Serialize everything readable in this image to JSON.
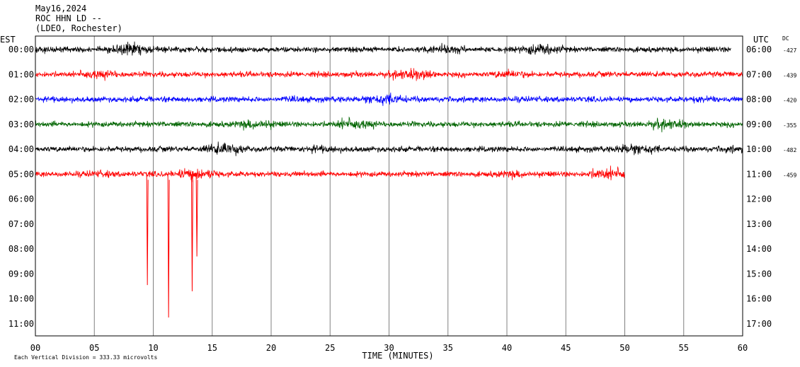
{
  "header": {
    "date": "May16,2024",
    "station": "ROC HHN LD --",
    "network": "(LDEO, Rochester)"
  },
  "chart_data": {
    "type": "line",
    "xlabel": "TIME (MINUTES)",
    "left_axis_label": "EST",
    "right_axis_label": "UTC",
    "dc_label": "DC",
    "xlim": [
      0,
      60
    ],
    "x_ticks": [
      "00",
      "05",
      "10",
      "15",
      "20",
      "25",
      "30",
      "35",
      "40",
      "45",
      "50",
      "55",
      "60"
    ],
    "rows_est": [
      "00:00",
      "01:00",
      "02:00",
      "03:00",
      "04:00",
      "05:00",
      "06:00",
      "07:00",
      "08:00",
      "09:00",
      "10:00",
      "11:00"
    ],
    "rows_utc": [
      "06:00",
      "07:00",
      "08:00",
      "09:00",
      "10:00",
      "11:00",
      "12:00",
      "13:00",
      "14:00",
      "15:00",
      "16:00",
      "17:00"
    ],
    "grid": true,
    "scale_note": "Each Vertical Division =  333.33 microvolts",
    "series": [
      {
        "row": 0,
        "color": "#000000",
        "dc": "-427",
        "end_minute": 59
      },
      {
        "row": 1,
        "color": "#ff0000",
        "dc": "-439",
        "end_minute": 60
      },
      {
        "row": 2,
        "color": "#0000ff",
        "dc": "-420",
        "end_minute": 60
      },
      {
        "row": 3,
        "color": "#006400",
        "dc": "-355",
        "end_minute": 60
      },
      {
        "row": 4,
        "color": "#000000",
        "dc": "-482",
        "end_minute": 60
      },
      {
        "row": 5,
        "color": "#ff0000",
        "dc": "-459",
        "end_minute": 50
      }
    ],
    "spikes": [
      {
        "row": 5,
        "minute": 9.5,
        "to_row": 9.45
      },
      {
        "row": 5,
        "minute": 11.3,
        "to_row": 10.75
      },
      {
        "row": 5,
        "minute": 13.3,
        "to_row": 9.7
      },
      {
        "row": 5,
        "minute": 13.7,
        "to_row": 8.3
      }
    ]
  }
}
